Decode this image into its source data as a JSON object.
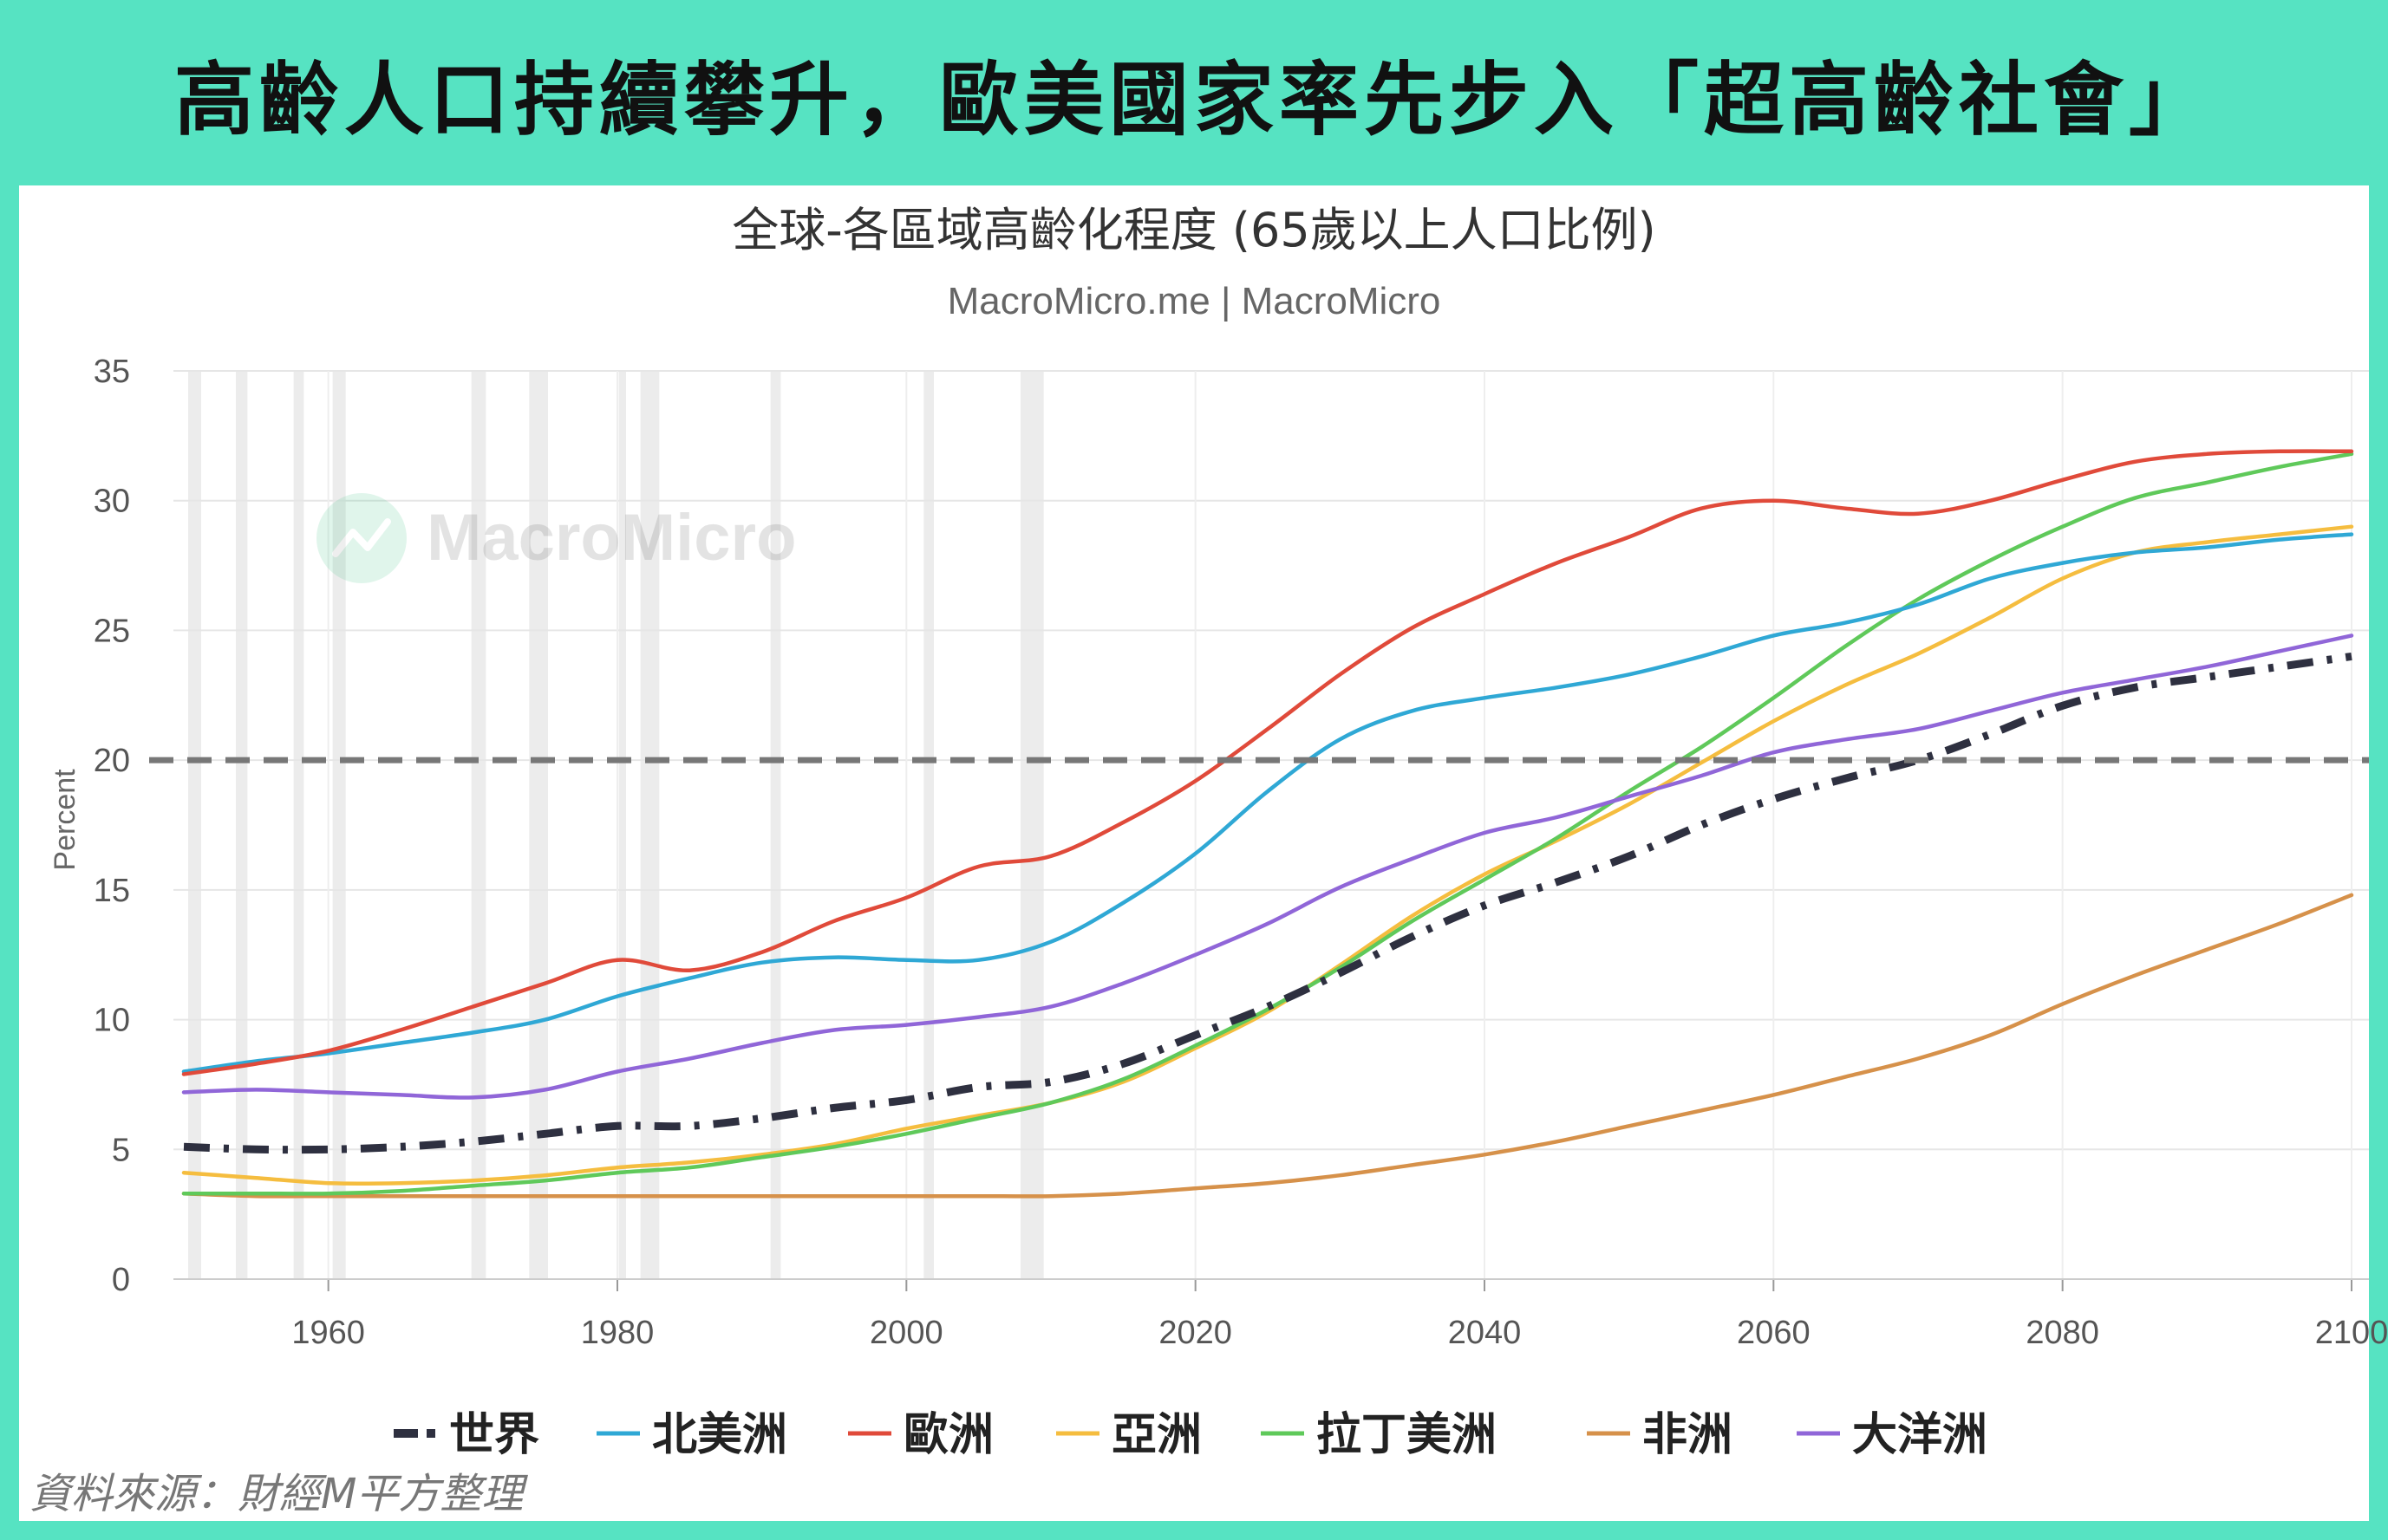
{
  "headline": "高齡人口持續攀升，歐美國家率先步入「超高齡社會」",
  "source": "資料來源：財經M平方整理",
  "watermark": "MacroMicro",
  "chart_data": {
    "type": "line",
    "title": "全球-各區域高齡化程度 (65歲以上人口比例)",
    "subtitle": "MacroMicro.me | MacroMicro",
    "ylabel": "Percent",
    "xlabel": "",
    "xlim": [
      1950,
      2100
    ],
    "ylim": [
      0,
      35
    ],
    "x_ticks": [
      1960,
      1980,
      2000,
      2020,
      2040,
      2060,
      2080,
      2100
    ],
    "y_ticks": [
      0,
      5,
      10,
      15,
      20,
      25,
      30,
      35
    ],
    "reference_line": {
      "y": 20,
      "style": "dashed",
      "color": "#777777"
    },
    "legend_position": "bottom",
    "recession_bands": [
      [
        1950.3,
        1951.2
      ],
      [
        1953.6,
        1954.4
      ],
      [
        1957.6,
        1958.3
      ],
      [
        1960.3,
        1961.2
      ],
      [
        1969.9,
        1970.9
      ],
      [
        1973.9,
        1975.2
      ],
      [
        1980.1,
        1980.6
      ],
      [
        1981.6,
        1982.9
      ],
      [
        1990.6,
        1991.3
      ],
      [
        2001.2,
        2001.9
      ],
      [
        2007.9,
        2009.5
      ]
    ],
    "series": [
      {
        "name": "世界",
        "color": "#2e3040",
        "style": "dashdot",
        "points": [
          [
            1950,
            5.1
          ],
          [
            1955,
            5.0
          ],
          [
            1960,
            5.0
          ],
          [
            1965,
            5.1
          ],
          [
            1970,
            5.3
          ],
          [
            1975,
            5.6
          ],
          [
            1980,
            5.9
          ],
          [
            1985,
            5.9
          ],
          [
            1990,
            6.2
          ],
          [
            1995,
            6.6
          ],
          [
            2000,
            6.9
          ],
          [
            2005,
            7.4
          ],
          [
            2010,
            7.6
          ],
          [
            2015,
            8.3
          ],
          [
            2020,
            9.4
          ],
          [
            2025,
            10.5
          ],
          [
            2030,
            11.8
          ],
          [
            2035,
            13.2
          ],
          [
            2040,
            14.4
          ],
          [
            2045,
            15.3
          ],
          [
            2050,
            16.3
          ],
          [
            2055,
            17.5
          ],
          [
            2060,
            18.5
          ],
          [
            2065,
            19.3
          ],
          [
            2070,
            20.0
          ],
          [
            2075,
            21.0
          ],
          [
            2080,
            22.1
          ],
          [
            2085,
            22.8
          ],
          [
            2090,
            23.2
          ],
          [
            2095,
            23.6
          ],
          [
            2100,
            24.0
          ]
        ]
      },
      {
        "name": "北美洲",
        "color": "#2fa8d5",
        "style": "solid",
        "points": [
          [
            1950,
            8.0
          ],
          [
            1955,
            8.4
          ],
          [
            1960,
            8.7
          ],
          [
            1965,
            9.1
          ],
          [
            1970,
            9.5
          ],
          [
            1975,
            10.0
          ],
          [
            1980,
            10.9
          ],
          [
            1985,
            11.6
          ],
          [
            1990,
            12.2
          ],
          [
            1995,
            12.4
          ],
          [
            2000,
            12.3
          ],
          [
            2005,
            12.3
          ],
          [
            2010,
            13.0
          ],
          [
            2015,
            14.5
          ],
          [
            2020,
            16.4
          ],
          [
            2025,
            18.8
          ],
          [
            2030,
            20.8
          ],
          [
            2035,
            21.9
          ],
          [
            2040,
            22.4
          ],
          [
            2045,
            22.8
          ],
          [
            2050,
            23.3
          ],
          [
            2055,
            24.0
          ],
          [
            2060,
            24.8
          ],
          [
            2065,
            25.3
          ],
          [
            2070,
            26.0
          ],
          [
            2075,
            27.0
          ],
          [
            2080,
            27.6
          ],
          [
            2085,
            28.0
          ],
          [
            2090,
            28.2
          ],
          [
            2095,
            28.5
          ],
          [
            2100,
            28.7
          ]
        ]
      },
      {
        "name": "歐洲",
        "color": "#e04a3a",
        "style": "solid",
        "points": [
          [
            1950,
            7.9
          ],
          [
            1955,
            8.3
          ],
          [
            1960,
            8.8
          ],
          [
            1965,
            9.6
          ],
          [
            1970,
            10.5
          ],
          [
            1975,
            11.4
          ],
          [
            1980,
            12.3
          ],
          [
            1985,
            11.9
          ],
          [
            1990,
            12.6
          ],
          [
            1995,
            13.8
          ],
          [
            2000,
            14.7
          ],
          [
            2005,
            15.9
          ],
          [
            2010,
            16.3
          ],
          [
            2015,
            17.6
          ],
          [
            2020,
            19.2
          ],
          [
            2025,
            21.2
          ],
          [
            2030,
            23.3
          ],
          [
            2035,
            25.1
          ],
          [
            2040,
            26.4
          ],
          [
            2045,
            27.6
          ],
          [
            2050,
            28.6
          ],
          [
            2055,
            29.7
          ],
          [
            2060,
            30.0
          ],
          [
            2065,
            29.7
          ],
          [
            2070,
            29.5
          ],
          [
            2075,
            30.0
          ],
          [
            2080,
            30.8
          ],
          [
            2085,
            31.5
          ],
          [
            2090,
            31.8
          ],
          [
            2095,
            31.9
          ],
          [
            2100,
            31.9
          ]
        ]
      },
      {
        "name": "亞洲",
        "color": "#f5bd3f",
        "style": "solid",
        "points": [
          [
            1950,
            4.1
          ],
          [
            1955,
            3.9
          ],
          [
            1960,
            3.7
          ],
          [
            1965,
            3.7
          ],
          [
            1970,
            3.8
          ],
          [
            1975,
            4.0
          ],
          [
            1980,
            4.3
          ],
          [
            1985,
            4.5
          ],
          [
            1990,
            4.8
          ],
          [
            1995,
            5.2
          ],
          [
            2000,
            5.8
          ],
          [
            2005,
            6.3
          ],
          [
            2010,
            6.8
          ],
          [
            2015,
            7.6
          ],
          [
            2020,
            8.9
          ],
          [
            2025,
            10.3
          ],
          [
            2030,
            12.1
          ],
          [
            2035,
            14.0
          ],
          [
            2040,
            15.6
          ],
          [
            2045,
            16.9
          ],
          [
            2050,
            18.3
          ],
          [
            2055,
            19.9
          ],
          [
            2060,
            21.5
          ],
          [
            2065,
            22.9
          ],
          [
            2070,
            24.1
          ],
          [
            2075,
            25.5
          ],
          [
            2080,
            27.0
          ],
          [
            2085,
            28.0
          ],
          [
            2090,
            28.4
          ],
          [
            2095,
            28.7
          ],
          [
            2100,
            29.0
          ]
        ]
      },
      {
        "name": "拉丁美洲",
        "color": "#5fc95a",
        "style": "solid",
        "points": [
          [
            1950,
            3.3
          ],
          [
            1955,
            3.3
          ],
          [
            1960,
            3.3
          ],
          [
            1965,
            3.4
          ],
          [
            1970,
            3.6
          ],
          [
            1975,
            3.8
          ],
          [
            1980,
            4.1
          ],
          [
            1985,
            4.3
          ],
          [
            1990,
            4.7
          ],
          [
            1995,
            5.1
          ],
          [
            2000,
            5.6
          ],
          [
            2005,
            6.2
          ],
          [
            2010,
            6.8
          ],
          [
            2015,
            7.7
          ],
          [
            2020,
            9.0
          ],
          [
            2025,
            10.4
          ],
          [
            2030,
            12.0
          ],
          [
            2035,
            13.8
          ],
          [
            2040,
            15.4
          ],
          [
            2045,
            17.0
          ],
          [
            2050,
            18.8
          ],
          [
            2055,
            20.5
          ],
          [
            2060,
            22.4
          ],
          [
            2065,
            24.4
          ],
          [
            2070,
            26.2
          ],
          [
            2075,
            27.7
          ],
          [
            2080,
            29.0
          ],
          [
            2085,
            30.1
          ],
          [
            2090,
            30.7
          ],
          [
            2095,
            31.3
          ],
          [
            2100,
            31.8
          ]
        ]
      },
      {
        "name": "非洲",
        "color": "#d6914a",
        "style": "solid",
        "points": [
          [
            1950,
            3.3
          ],
          [
            1955,
            3.2
          ],
          [
            1960,
            3.2
          ],
          [
            1965,
            3.2
          ],
          [
            1970,
            3.2
          ],
          [
            1975,
            3.2
          ],
          [
            1980,
            3.2
          ],
          [
            1985,
            3.2
          ],
          [
            1990,
            3.2
          ],
          [
            1995,
            3.2
          ],
          [
            2000,
            3.2
          ],
          [
            2005,
            3.2
          ],
          [
            2010,
            3.2
          ],
          [
            2015,
            3.3
          ],
          [
            2020,
            3.5
          ],
          [
            2025,
            3.7
          ],
          [
            2030,
            4.0
          ],
          [
            2035,
            4.4
          ],
          [
            2040,
            4.8
          ],
          [
            2045,
            5.3
          ],
          [
            2050,
            5.9
          ],
          [
            2055,
            6.5
          ],
          [
            2060,
            7.1
          ],
          [
            2065,
            7.8
          ],
          [
            2070,
            8.5
          ],
          [
            2075,
            9.4
          ],
          [
            2080,
            10.6
          ],
          [
            2085,
            11.7
          ],
          [
            2090,
            12.7
          ],
          [
            2095,
            13.7
          ],
          [
            2100,
            14.8
          ]
        ]
      },
      {
        "name": "大洋洲",
        "color": "#9066d8",
        "style": "solid",
        "points": [
          [
            1950,
            7.2
          ],
          [
            1955,
            7.3
          ],
          [
            1960,
            7.2
          ],
          [
            1965,
            7.1
          ],
          [
            1970,
            7.0
          ],
          [
            1975,
            7.3
          ],
          [
            1980,
            8.0
          ],
          [
            1985,
            8.5
          ],
          [
            1990,
            9.1
          ],
          [
            1995,
            9.6
          ],
          [
            2000,
            9.8
          ],
          [
            2005,
            10.1
          ],
          [
            2010,
            10.5
          ],
          [
            2015,
            11.4
          ],
          [
            2020,
            12.5
          ],
          [
            2025,
            13.7
          ],
          [
            2030,
            15.1
          ],
          [
            2035,
            16.2
          ],
          [
            2040,
            17.2
          ],
          [
            2045,
            17.8
          ],
          [
            2050,
            18.6
          ],
          [
            2055,
            19.4
          ],
          [
            2060,
            20.3
          ],
          [
            2065,
            20.8
          ],
          [
            2070,
            21.2
          ],
          [
            2075,
            21.9
          ],
          [
            2080,
            22.6
          ],
          [
            2085,
            23.1
          ],
          [
            2090,
            23.6
          ],
          [
            2095,
            24.2
          ],
          [
            2100,
            24.8
          ]
        ]
      }
    ]
  }
}
